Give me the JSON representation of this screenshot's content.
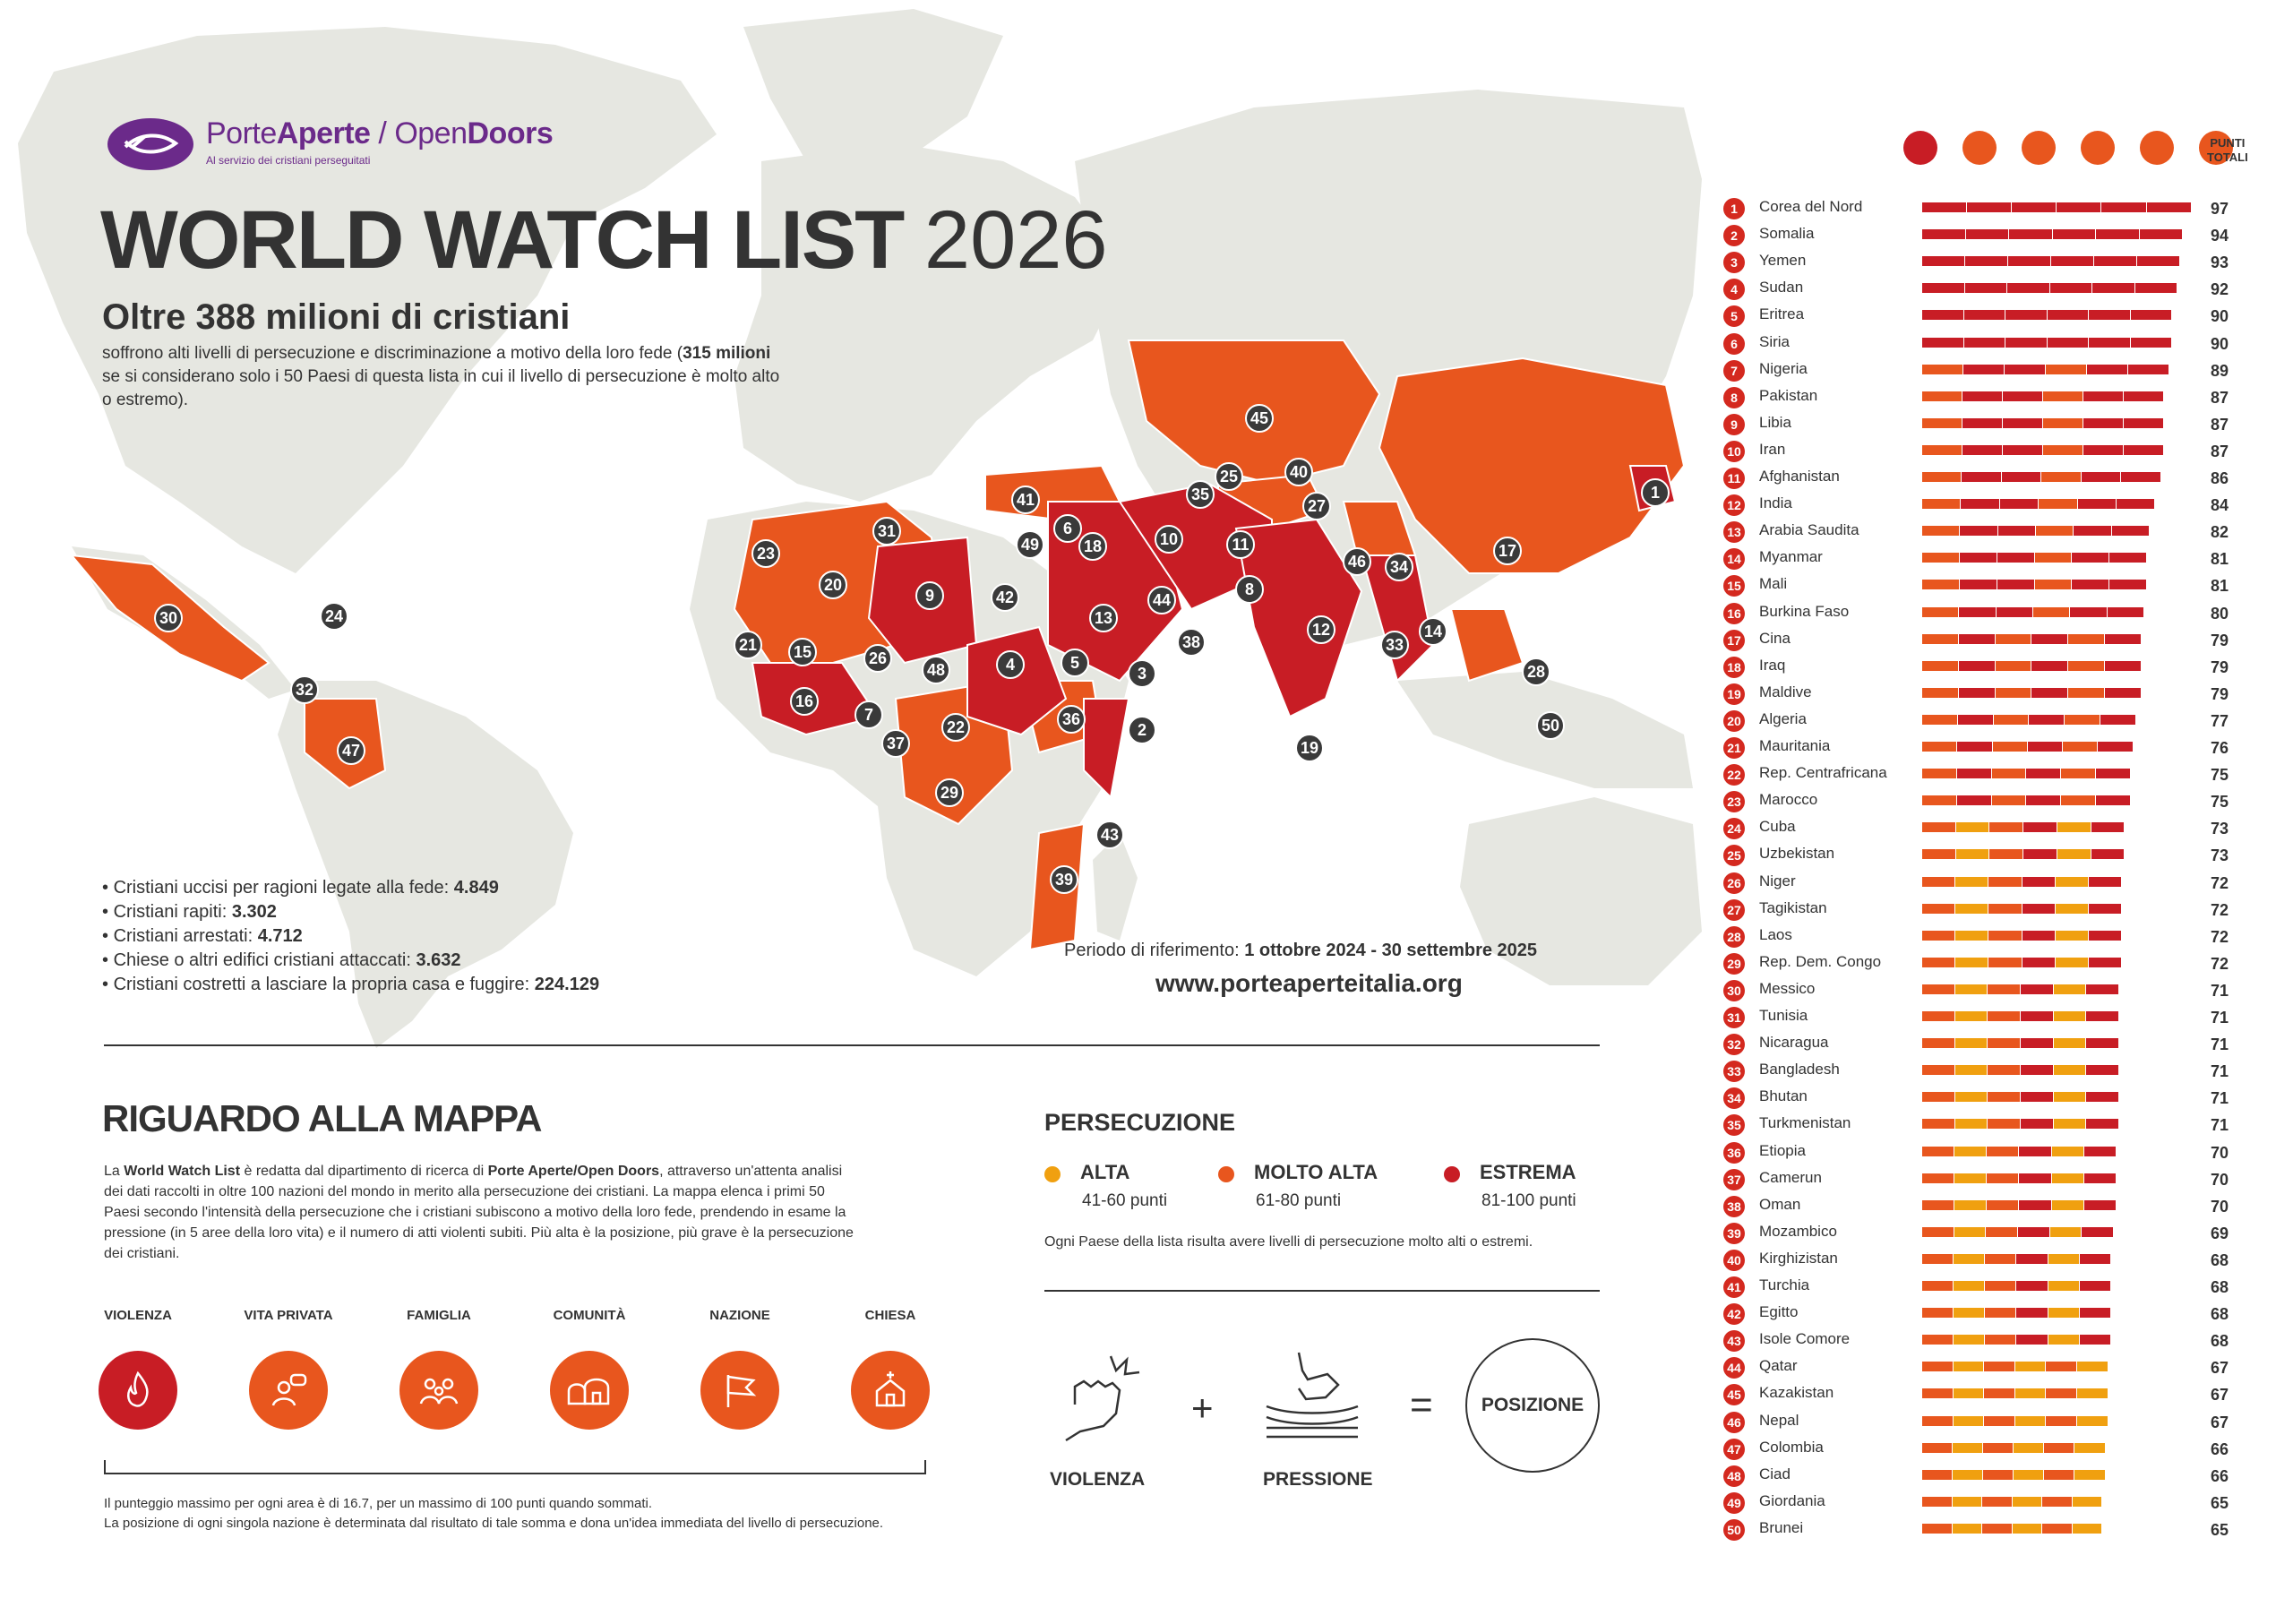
{
  "logo": {
    "brand_light": "Porte",
    "brand_bold": "Aperte",
    "separator": " / ",
    "brand2_light": "Open",
    "brand2_bold": "Doors",
    "tagline": "Al servizio dei cristiani perseguitati"
  },
  "header": {
    "title": "WORLD WATCH LIST",
    "year": "2026",
    "headline": "Oltre 388 milioni di cristiani",
    "subtitle_pre": "soffrono alti livelli di persecuzione e discriminazione a motivo della loro fede (",
    "subtitle_bold": "315 milioni",
    "subtitle_post": " se si considerano solo i 50 Paesi di questa lista in cui il livello di persecuzione è molto alto o estremo)."
  },
  "stats": [
    {
      "label": "Cristiani uccisi per ragioni legate alla fede: ",
      "value": "4.849"
    },
    {
      "label": "Cristiani rapiti: ",
      "value": "3.302"
    },
    {
      "label": "Cristiani arrestati: ",
      "value": "4.712"
    },
    {
      "label": "Chiese o altri edifici cristiani attaccati: ",
      "value": "3.632"
    },
    {
      "label": "Cristiani costretti a lasciare la propria casa e fuggire: ",
      "value": "224.129"
    }
  ],
  "period": {
    "label": "Periodo di riferimento: ",
    "value": "1 ottobre 2024 - 30 settembre 2025"
  },
  "website": "www.porteaperteitalia.org",
  "about": {
    "title": "RIGUARDO ALLA MAPPA",
    "p1": "La ",
    "p1_b1": "World Watch List",
    "p2": " è redatta dal dipartimento di ricerca di ",
    "p2_b2": "Porte Aperte/Open Doors",
    "p3": ", attraverso un'attenta analisi dei dati raccolti in oltre 100 nazioni del mondo in merito alla persecuzione dei cristiani. La mappa elenca i primi 50 Paesi secondo l'intensità della persecuzione che i cristiani subiscono a motivo della loro fede, prendendo in esame la pressione (in 5 aree della loro vita) e il numero di atti violenti subiti. Più alta è la posizione, più grave è la persecuzione dei cristiani.",
    "areas": [
      {
        "label": "VIOLENZA",
        "icon": "flame-icon",
        "color": "#c81d25"
      },
      {
        "label": "VITA PRIVATA",
        "icon": "person-speech-icon",
        "color": "#e8561e"
      },
      {
        "label": "FAMIGLIA",
        "icon": "family-icon",
        "color": "#e8561e"
      },
      {
        "label": "COMUNITÀ",
        "icon": "houses-icon",
        "color": "#e8561e"
      },
      {
        "label": "NAZIONE",
        "icon": "flag-icon",
        "color": "#e8561e"
      },
      {
        "label": "CHIESA",
        "icon": "church-icon",
        "color": "#e8561e"
      }
    ],
    "footnote1": "Il punteggio massimo per ogni area è di 16.7, per un massimo di 100 punti quando sommati.",
    "footnote2": "La posizione di ogni singola nazione è determinata dal risultato di tale somma e dona un'idea immediata del livello di persecuzione."
  },
  "persecution": {
    "title": "PERSECUZIONE",
    "levels": [
      {
        "name": "ALTA",
        "range": "41-60 punti",
        "color": "#f0a010"
      },
      {
        "name": "MOLTO ALTA",
        "range": "61-80 punti",
        "color": "#e8561e"
      },
      {
        "name": "ESTREMA",
        "range": "81-100 punti",
        "color": "#c81d25"
      }
    ],
    "note": "Ogni Paese della lista risulta avere livelli di persecuzione molto alti o estremi.",
    "equation": {
      "a": "VIOLENZA",
      "plus": "+",
      "b": "PRESSIONE",
      "equals": "=",
      "result": "POSIZIONE"
    }
  },
  "ranking_header": {
    "total_label_1": "PUNTI",
    "total_label_2": "TOTALI"
  },
  "colors": {
    "alta": "#f0a010",
    "molto_alta": "#e8561e",
    "estrema": "#c81d25",
    "land": "#e6e7e1",
    "ocean": "#ffffff",
    "brand": "#6b2a8a"
  },
  "chart_data": {
    "type": "bar",
    "title": "WORLD WATCH LIST 2026",
    "stacked_by": [
      "Violenza",
      "Vita privata",
      "Famiglia",
      "Comunità",
      "Nazione",
      "Chiesa"
    ],
    "max_total": 100,
    "categories": [
      "Corea del Nord",
      "Somalia",
      "Yemen",
      "Sudan",
      "Eritrea",
      "Siria",
      "Nigeria",
      "Pakistan",
      "Libia",
      "Iran",
      "Afghanistan",
      "India",
      "Arabia Saudita",
      "Myanmar",
      "Mali",
      "Burkina Faso",
      "Cina",
      "Iraq",
      "Maldive",
      "Algeria",
      "Mauritania",
      "Rep. Centrafricana",
      "Marocco",
      "Cuba",
      "Uzbekistan",
      "Niger",
      "Tagikistan",
      "Laos",
      "Rep. Dem. Congo",
      "Messico",
      "Tunisia",
      "Nicaragua",
      "Bangladesh",
      "Bhutan",
      "Turkmenistan",
      "Etiopia",
      "Camerun",
      "Oman",
      "Mozambico",
      "Kirghizistan",
      "Turchia",
      "Egitto",
      "Isole Comore",
      "Qatar",
      "Kazakistan",
      "Nepal",
      "Colombia",
      "Ciad",
      "Giordania",
      "Brunei"
    ],
    "values": [
      97,
      94,
      93,
      92,
      90,
      90,
      89,
      87,
      87,
      87,
      86,
      84,
      82,
      81,
      81,
      80,
      79,
      79,
      79,
      77,
      76,
      75,
      75,
      73,
      73,
      72,
      72,
      72,
      72,
      71,
      71,
      71,
      71,
      71,
      71,
      70,
      70,
      70,
      69,
      68,
      68,
      68,
      68,
      67,
      67,
      67,
      66,
      66,
      65,
      65
    ],
    "map_markers": [
      {
        "rank": 1,
        "level": "estrema"
      },
      {
        "rank": 2,
        "level": "estrema"
      },
      {
        "rank": 3,
        "level": "estrema"
      },
      {
        "rank": 4,
        "level": "estrema"
      },
      {
        "rank": 5,
        "level": "estrema"
      },
      {
        "rank": 6,
        "level": "estrema"
      },
      {
        "rank": 7,
        "level": "estrema"
      },
      {
        "rank": 8,
        "level": "estrema"
      },
      {
        "rank": 9,
        "level": "estrema"
      },
      {
        "rank": 10,
        "level": "estrema"
      },
      {
        "rank": 11,
        "level": "estrema"
      },
      {
        "rank": 12,
        "level": "estrema"
      },
      {
        "rank": 13,
        "level": "estrema"
      },
      {
        "rank": 14,
        "level": "estrema"
      },
      {
        "rank": 15,
        "level": "estrema"
      },
      {
        "rank": 16,
        "level": "molto_alta"
      },
      {
        "rank": 17,
        "level": "molto_alta"
      },
      {
        "rank": 18,
        "level": "molto_alta"
      },
      {
        "rank": 19,
        "level": "molto_alta"
      },
      {
        "rank": 20,
        "level": "molto_alta"
      },
      {
        "rank": 21,
        "level": "molto_alta"
      },
      {
        "rank": 22,
        "level": "molto_alta"
      },
      {
        "rank": 23,
        "level": "molto_alta"
      },
      {
        "rank": 24,
        "level": "molto_alta"
      },
      {
        "rank": 25,
        "level": "molto_alta"
      },
      {
        "rank": 26,
        "level": "molto_alta"
      },
      {
        "rank": 27,
        "level": "molto_alta"
      },
      {
        "rank": 28,
        "level": "molto_alta"
      },
      {
        "rank": 29,
        "level": "molto_alta"
      },
      {
        "rank": 30,
        "level": "molto_alta"
      },
      {
        "rank": 31,
        "level": "molto_alta"
      },
      {
        "rank": 32,
        "level": "molto_alta"
      },
      {
        "rank": 33,
        "level": "molto_alta"
      },
      {
        "rank": 34,
        "level": "molto_alta"
      },
      {
        "rank": 35,
        "level": "molto_alta"
      },
      {
        "rank": 36,
        "level": "molto_alta"
      },
      {
        "rank": 37,
        "level": "molto_alta"
      },
      {
        "rank": 38,
        "level": "molto_alta"
      },
      {
        "rank": 39,
        "level": "molto_alta"
      },
      {
        "rank": 40,
        "level": "molto_alta"
      },
      {
        "rank": 41,
        "level": "molto_alta"
      },
      {
        "rank": 42,
        "level": "molto_alta"
      },
      {
        "rank": 43,
        "level": "molto_alta"
      },
      {
        "rank": 44,
        "level": "molto_alta"
      },
      {
        "rank": 45,
        "level": "molto_alta"
      },
      {
        "rank": 46,
        "level": "molto_alta"
      },
      {
        "rank": 47,
        "level": "molto_alta"
      },
      {
        "rank": 48,
        "level": "molto_alta"
      },
      {
        "rank": 49,
        "level": "molto_alta"
      },
      {
        "rank": 50,
        "level": "molto_alta"
      }
    ]
  }
}
